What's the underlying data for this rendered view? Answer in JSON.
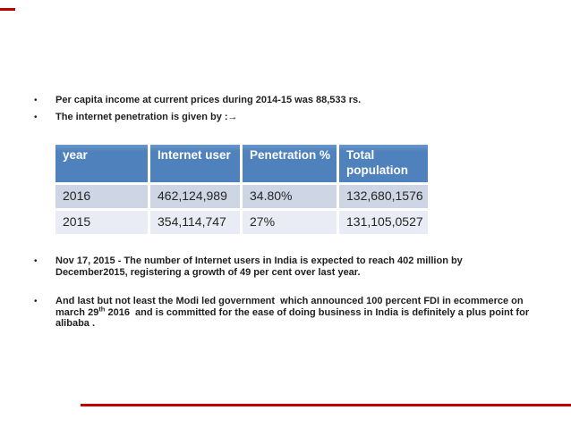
{
  "slide": {
    "bullets_top": [
      {
        "text": "Per capita income at current prices during 2014-15 was 88,533 rs."
      },
      {
        "text": "The internet penetration is given by :→"
      }
    ],
    "table": {
      "headers": [
        "year",
        "Internet user",
        "Penetration %",
        "Total population"
      ],
      "rows": [
        [
          "2016",
          "462,124,989",
          "34.80%",
          "132,680,1576"
        ],
        [
          "2015",
          "354,114,747",
          "27%",
          "131,105,0527"
        ]
      ]
    },
    "bullets_bottom": [
      {
        "text": "Nov 17, 2015 - The number of Internet users in India is expected to reach 402 million by December2015, registering a growth of 49 per cent over last year."
      },
      {
        "pre": "And last but not least the Modi led government  which announced 100 percent FDI in ecommerce on march 29",
        "sup": "th",
        "post": " 2016  and is committed for the ease of doing business in India is definitely a plus point for alibaba ."
      }
    ],
    "bullet_marker": "•",
    "colors": {
      "table_header_bg": "#4f81bd",
      "table_header_text": "#ffffff",
      "table_row_even_bg": "#ced5e5",
      "table_row_odd_bg": "#e9ecf4",
      "body_text": "#1f1f1f",
      "red_accent": "#c00000",
      "background": "#ffffff"
    }
  }
}
